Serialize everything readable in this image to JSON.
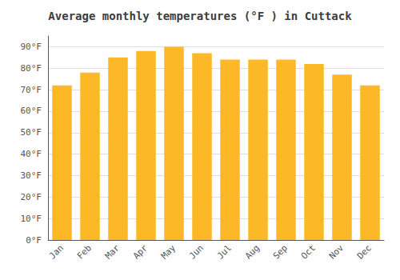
{
  "chart_data": {
    "type": "bar",
    "title": "Average monthly temperatures (°F ) in Cuttack",
    "categories": [
      "Jan",
      "Feb",
      "Mar",
      "Apr",
      "May",
      "Jun",
      "Jul",
      "Aug",
      "Sep",
      "Oct",
      "Nov",
      "Dec"
    ],
    "values": [
      72,
      78,
      85,
      88,
      90,
      87,
      84,
      84,
      84,
      82,
      77,
      72
    ],
    "color": "#FDB827",
    "ylim": [
      0,
      95
    ],
    "yticks": [
      {
        "value": 0,
        "label": "0°F"
      },
      {
        "value": 10,
        "label": "10°F"
      },
      {
        "value": 20,
        "label": "20°F"
      },
      {
        "value": 30,
        "label": "30°F"
      },
      {
        "value": 40,
        "label": "40°F"
      },
      {
        "value": 50,
        "label": "50°F"
      },
      {
        "value": 60,
        "label": "60°F"
      },
      {
        "value": 70,
        "label": "70°F"
      },
      {
        "value": 80,
        "label": "80°F"
      },
      {
        "value": 90,
        "label": "90°F"
      }
    ],
    "grid": true
  }
}
